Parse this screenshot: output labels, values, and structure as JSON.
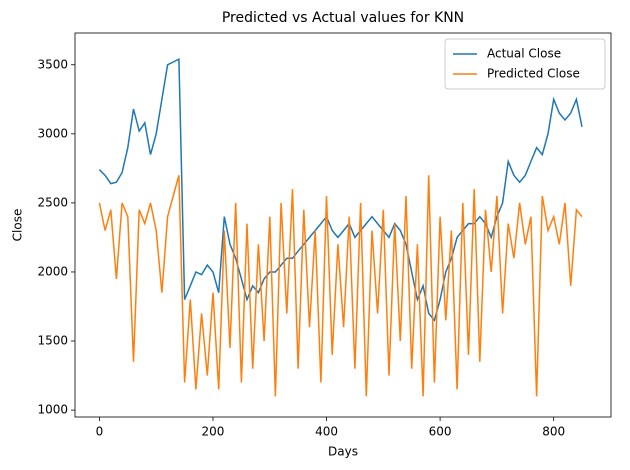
{
  "chart_data": {
    "type": "line",
    "title": "Predicted vs Actual values for KNN",
    "x_label": "Days",
    "y_label": "Close",
    "x": [
      0,
      10,
      20,
      30,
      40,
      50,
      60,
      70,
      80,
      90,
      100,
      110,
      120,
      130,
      140,
      150,
      160,
      170,
      180,
      190,
      200,
      210,
      220,
      230,
      240,
      250,
      260,
      270,
      280,
      290,
      300,
      310,
      320,
      330,
      340,
      350,
      360,
      370,
      380,
      390,
      400,
      410,
      420,
      430,
      440,
      450,
      460,
      470,
      480,
      490,
      500,
      510,
      520,
      530,
      540,
      550,
      560,
      570,
      580,
      590,
      600,
      610,
      620,
      630,
      640,
      650,
      660,
      670,
      680,
      690,
      700,
      710,
      720,
      730,
      740,
      750,
      760,
      770,
      780,
      790,
      800,
      810,
      820,
      830,
      840,
      850
    ],
    "series": [
      {
        "name": "Actual Close",
        "color": "#1f77b4",
        "values": [
          2740,
          2700,
          2640,
          2650,
          2720,
          2900,
          3180,
          3020,
          3080,
          2850,
          3000,
          3250,
          3500,
          3520,
          3540,
          1800,
          1900,
          2000,
          1980,
          2050,
          2000,
          1850,
          2400,
          2200,
          2100,
          1950,
          1800,
          1900,
          1850,
          1950,
          2000,
          2000,
          2050,
          2100,
          2100,
          2150,
          2200,
          2250,
          2300,
          2350,
          2400,
          2300,
          2250,
          2300,
          2350,
          2250,
          2300,
          2350,
          2400,
          2350,
          2300,
          2250,
          2350,
          2300,
          2200,
          2000,
          1800,
          1900,
          1700,
          1650,
          1800,
          2000,
          2100,
          2250,
          2300,
          2350,
          2350,
          2400,
          2350,
          2250,
          2400,
          2500,
          2800,
          2700,
          2650,
          2700,
          2800,
          2900,
          2850,
          3000,
          3250,
          3150,
          3100,
          3150,
          3250,
          3050
        ]
      },
      {
        "name": "Predicted Close",
        "color": "#ff7f0e",
        "values": [
          2500,
          2300,
          2450,
          1950,
          2500,
          2400,
          1350,
          2450,
          2350,
          2500,
          2300,
          1850,
          2400,
          2550,
          2700,
          1200,
          1800,
          1150,
          1700,
          1250,
          1850,
          1150,
          2300,
          1450,
          2500,
          1200,
          2350,
          1300,
          2200,
          1500,
          2400,
          1100,
          2500,
          1700,
          2600,
          1300,
          2450,
          1600,
          2300,
          1200,
          2550,
          1400,
          2200,
          1600,
          2400,
          1300,
          2500,
          1100,
          2300,
          1700,
          2450,
          1250,
          2350,
          1500,
          2550,
          1300,
          2200,
          1100,
          2700,
          1200,
          2400,
          1650,
          2300,
          1150,
          2500,
          1400,
          2600,
          1350,
          2450,
          2000,
          2550,
          1700,
          2350,
          2100,
          2500,
          2200,
          2400,
          1100,
          2550,
          2300,
          2400,
          2200,
          2500,
          1900,
          2450,
          2400
        ]
      }
    ],
    "xlim": [
      -43,
      901
    ],
    "ylim": [
      950,
      3730
    ],
    "xticks": [
      0,
      200,
      400,
      600,
      800
    ],
    "yticks": [
      1000,
      1500,
      2000,
      2500,
      3000,
      3500
    ],
    "legend": "upper right",
    "grid": false
  }
}
